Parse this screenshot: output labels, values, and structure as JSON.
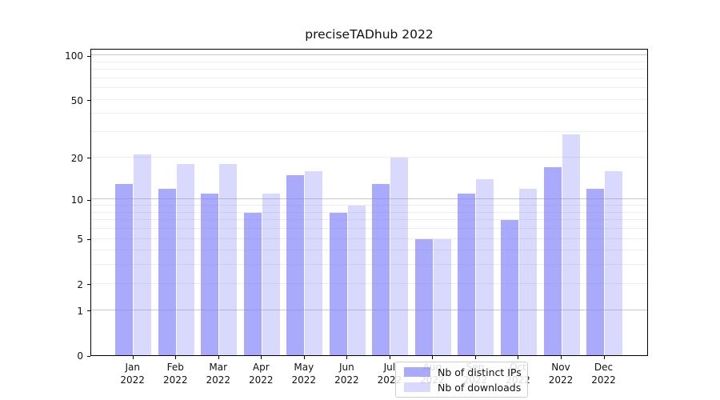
{
  "title": "preciseTADhub 2022",
  "colors": {
    "bar_base": "#8282fa",
    "ips_fill": "rgba(130,130,250,0.68)",
    "downloads_fill": "rgba(130,130,250,0.30)",
    "major_grid": "#c9c9c9",
    "minor_grid": "#ededed",
    "frame": "#000000"
  },
  "chart_data": {
    "type": "bar",
    "title": "preciseTADhub 2022",
    "categories": [
      "Jan 2022",
      "Feb 2022",
      "Mar 2022",
      "Apr 2022",
      "May 2022",
      "Jun 2022",
      "Jul 2022",
      "Aug 2022",
      "Sep 2022",
      "Oct 2022",
      "Nov 2022",
      "Dec 2022"
    ],
    "x_tick_month": [
      "Jan",
      "Feb",
      "Mar",
      "Apr",
      "May",
      "Jun",
      "Jul",
      "Aug",
      "Sep",
      "Oct",
      "Nov",
      "Dec"
    ],
    "x_tick_year": "2022",
    "series": [
      {
        "name": "Nb of distinct IPs",
        "color": "rgba(130,130,250,0.68)",
        "values": [
          13,
          12,
          11,
          8,
          15,
          8,
          13,
          5,
          11,
          7,
          17,
          12
        ]
      },
      {
        "name": "Nb of downloads",
        "color": "rgba(130,130,250,0.30)",
        "values": [
          21,
          18,
          18,
          11,
          16,
          9,
          20,
          5,
          14,
          12,
          29,
          16
        ]
      }
    ],
    "xlabel": "",
    "ylabel": "",
    "y_scale": "log1p",
    "y_ticks": [
      0,
      1,
      2,
      5,
      10,
      20,
      50,
      100
    ],
    "major_gridlines": [
      1,
      10,
      100
    ],
    "minor_gridlines": [
      2,
      3,
      4,
      5,
      6,
      7,
      8,
      9,
      20,
      30,
      40,
      50,
      60,
      70,
      80,
      90
    ],
    "ylim": [
      0,
      110
    ],
    "grid": "on",
    "legend_position": "lower center"
  }
}
